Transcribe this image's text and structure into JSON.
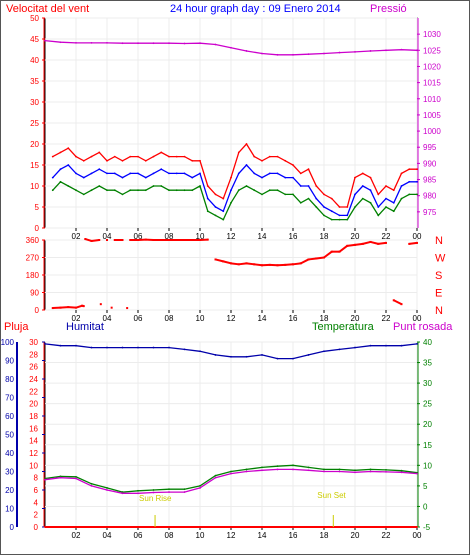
{
  "header": {
    "left_title": "Velocitat del vent",
    "center_title": "24 hour graph day : 09 Enero 2014",
    "right_title": "Pressió"
  },
  "colors": {
    "red": "#ff0000",
    "blue": "#0000ff",
    "green": "#008000",
    "magenta": "#cc00cc",
    "darkblue": "#0000aa",
    "yellow": "#cccc00",
    "axis_red": "#ff0000"
  },
  "chart_data": [
    {
      "type": "line",
      "title": "",
      "x_ticks": [
        "02",
        "04",
        "06",
        "08",
        "10",
        "12",
        "14",
        "16",
        "18",
        "20",
        "22",
        "00"
      ],
      "left_axis": {
        "label": "Velocitat del vent",
        "range": [
          0,
          50
        ],
        "ticks": [
          "0",
          "5",
          "10",
          "15",
          "20",
          "25",
          "30",
          "35",
          "40",
          "45",
          "50"
        ]
      },
      "right_axis": {
        "label": "Pressió",
        "range": [
          970,
          1035
        ],
        "ticks": [
          "975",
          "980",
          "985",
          "990",
          "995",
          "1000",
          "1005",
          "1010",
          "1015",
          "1020",
          "1025",
          "1030"
        ]
      },
      "series": [
        {
          "name": "",
          "color": "#ff0000",
          "x": [
            0.5,
            1,
            1.5,
            2,
            2.5,
            3,
            3.5,
            4,
            4.5,
            5,
            5.5,
            6,
            6.5,
            7,
            7.5,
            8,
            8.5,
            9,
            9.5,
            10,
            10.5,
            11,
            11.5,
            12,
            12.5,
            13,
            13.5,
            14,
            14.5,
            15,
            15.5,
            16,
            16.5,
            17,
            17.5,
            18,
            18.5,
            19,
            19.5,
            20,
            20.5,
            21,
            21.5,
            22,
            22.5,
            23,
            23.5,
            24
          ],
          "values": [
            17,
            18,
            19,
            17,
            16,
            17,
            18,
            16,
            17,
            16,
            17,
            17,
            16,
            17,
            18,
            17,
            17,
            17,
            16,
            16,
            10,
            8,
            7,
            12,
            18,
            20,
            17,
            16,
            17,
            17,
            16,
            15,
            13,
            14,
            10,
            8,
            7,
            5,
            5,
            12,
            13,
            12,
            8,
            10,
            9,
            13,
            14,
            14
          ]
        },
        {
          "name": "",
          "color": "#0000ff",
          "x": [
            0.5,
            1,
            1.5,
            2,
            2.5,
            3,
            3.5,
            4,
            4.5,
            5,
            5.5,
            6,
            6.5,
            7,
            7.5,
            8,
            8.5,
            9,
            9.5,
            10,
            10.5,
            11,
            11.5,
            12,
            12.5,
            13,
            13.5,
            14,
            14.5,
            15,
            15.5,
            16,
            16.5,
            17,
            17.5,
            18,
            18.5,
            19,
            19.5,
            20,
            20.5,
            21,
            21.5,
            22,
            22.5,
            23,
            23.5,
            24
          ],
          "values": [
            12,
            14,
            15,
            13,
            12,
            13,
            14,
            13,
            13,
            12,
            13,
            13,
            12,
            13,
            14,
            13,
            13,
            13,
            12,
            13,
            7,
            5,
            4,
            9,
            13,
            15,
            13,
            12,
            13,
            13,
            12,
            12,
            10,
            10,
            7,
            5,
            4,
            3,
            3,
            8,
            10,
            9,
            5,
            7,
            6,
            10,
            11,
            11
          ]
        },
        {
          "name": "",
          "color": "#008000",
          "x": [
            0.5,
            1,
            1.5,
            2,
            2.5,
            3,
            3.5,
            4,
            4.5,
            5,
            5.5,
            6,
            6.5,
            7,
            7.5,
            8,
            8.5,
            9,
            9.5,
            10,
            10.5,
            11,
            11.5,
            12,
            12.5,
            13,
            13.5,
            14,
            14.5,
            15,
            15.5,
            16,
            16.5,
            17,
            17.5,
            18,
            18.5,
            19,
            19.5,
            20,
            20.5,
            21,
            21.5,
            22,
            22.5,
            23,
            23.5,
            24
          ],
          "values": [
            9,
            11,
            10,
            9,
            8,
            9,
            10,
            9,
            9,
            8,
            9,
            9,
            9,
            10,
            10,
            9,
            9,
            9,
            9,
            10,
            4,
            3,
            2,
            6,
            9,
            10,
            9,
            8,
            9,
            9,
            8,
            8,
            6,
            7,
            5,
            3,
            2,
            2,
            2,
            5,
            7,
            6,
            3,
            5,
            4,
            7,
            8,
            8
          ]
        },
        {
          "name": "",
          "color": "#cc00cc",
          "axis": "right",
          "x": [
            0,
            1,
            2,
            3,
            4,
            5,
            6,
            7,
            8,
            9,
            10,
            11,
            12,
            13,
            14,
            15,
            16,
            17,
            18,
            19,
            20,
            21,
            22,
            23,
            24
          ],
          "values": [
            1028,
            1027.5,
            1027.3,
            1027.3,
            1027.3,
            1027.2,
            1027.2,
            1027.2,
            1027.2,
            1027.1,
            1027.2,
            1026.8,
            1025.8,
            1024.8,
            1024,
            1023.6,
            1023.6,
            1023.8,
            1024,
            1024.3,
            1024.5,
            1024.8,
            1025,
            1025.2,
            1025
          ]
        }
      ]
    },
    {
      "type": "scatter",
      "title": "",
      "x_ticks": [
        "02",
        "04",
        "06",
        "08",
        "10",
        "12",
        "14",
        "16",
        "18",
        "20",
        "22",
        "00"
      ],
      "left_axis": {
        "range": [
          0,
          360
        ],
        "ticks": [
          "0",
          "90",
          "180",
          "270",
          "360"
        ]
      },
      "right_axis": {
        "ticks": [
          "N",
          "W",
          "S",
          "E",
          "N"
        ]
      },
      "series": [
        {
          "name": "",
          "color": "#ff0000",
          "points": [
            [
              0.5,
              10
            ],
            [
              1,
              12
            ],
            [
              1.5,
              15
            ],
            [
              2,
              12
            ],
            [
              2.5,
              20
            ],
            [
              2.6,
              365
            ],
            [
              3,
              355
            ],
            [
              3.5,
              360
            ],
            [
              4,
              360
            ],
            [
              4.5,
              360
            ],
            [
              5,
              360
            ],
            [
              5.5,
              360
            ],
            [
              6,
              360
            ],
            [
              6.5,
              362
            ],
            [
              7,
              360
            ],
            [
              7.5,
              360
            ],
            [
              8,
              360
            ],
            [
              8.5,
              360
            ],
            [
              9,
              360
            ],
            [
              9.5,
              360
            ],
            [
              10,
              360
            ],
            [
              10.5,
              362
            ],
            [
              11,
              260
            ],
            [
              11.5,
              250
            ],
            [
              12,
              240
            ],
            [
              12.5,
              235
            ],
            [
              13,
              240
            ],
            [
              13.5,
              235
            ],
            [
              14,
              230
            ],
            [
              14.5,
              232
            ],
            [
              15,
              230
            ],
            [
              15.5,
              232
            ],
            [
              16,
              235
            ],
            [
              16.5,
              240
            ],
            [
              17,
              260
            ],
            [
              17.5,
              265
            ],
            [
              18,
              270
            ],
            [
              18.5,
              300
            ],
            [
              19,
              300
            ],
            [
              19.5,
              330
            ],
            [
              20,
              335
            ],
            [
              20.5,
              340
            ],
            [
              21,
              350
            ],
            [
              21.5,
              340
            ],
            [
              22,
              345
            ],
            [
              22.5,
              50
            ],
            [
              23,
              30
            ],
            [
              23.5,
              340
            ],
            [
              24,
              345
            ],
            [
              3.6,
              30
            ],
            [
              4.3,
              12
            ],
            [
              2.4,
              22
            ],
            [
              5.3,
              10
            ]
          ]
        }
      ]
    },
    {
      "type": "line",
      "title": "",
      "x_ticks": [
        "02",
        "04",
        "06",
        "08",
        "10",
        "12",
        "14",
        "16",
        "18",
        "20",
        "22",
        "00"
      ],
      "labels": {
        "rain": "Pluja",
        "humidity": "Humitat",
        "temperature": "Temperatura",
        "dewpoint": "Punt rosada"
      },
      "sun_labels": {
        "rise": "Sun Rise",
        "set": "Sun Set"
      },
      "rain_axis": {
        "range": [
          0,
          30
        ],
        "ticks": [
          "0",
          "2",
          "4",
          "6",
          "8",
          "10",
          "12",
          "14",
          "16",
          "18",
          "20",
          "22",
          "24",
          "26",
          "28",
          "30"
        ]
      },
      "humidity_axis": {
        "range": [
          0,
          100
        ],
        "ticks": [
          "0",
          "10",
          "20",
          "30",
          "40",
          "50",
          "60",
          "70",
          "80",
          "90",
          "100"
        ]
      },
      "temp_axis": {
        "range": [
          -5,
          40
        ],
        "ticks": [
          "-5",
          "0",
          "5",
          "10",
          "15",
          "20",
          "25",
          "30",
          "35",
          "40"
        ]
      },
      "series": [
        {
          "name": "Humitat",
          "color": "#0000aa",
          "axis": "humidity",
          "x": [
            0,
            1,
            2,
            3,
            4,
            5,
            6,
            7,
            8,
            9,
            10,
            11,
            12,
            13,
            14,
            15,
            16,
            17,
            18,
            19,
            20,
            21,
            22,
            23,
            24
          ],
          "values": [
            99,
            98,
            98,
            97,
            97,
            97,
            97,
            97,
            97,
            96,
            95,
            93,
            92,
            92,
            93,
            91,
            91,
            93,
            95,
            96,
            97,
            98,
            98,
            98,
            99
          ]
        },
        {
          "name": "Temperatura",
          "color": "#008000",
          "axis": "temp",
          "x": [
            0,
            1,
            2,
            3,
            4,
            5,
            6,
            7,
            8,
            9,
            10,
            11,
            12,
            13,
            14,
            15,
            16,
            17,
            18,
            19,
            20,
            21,
            22,
            23,
            24
          ],
          "values": [
            6.8,
            7.3,
            7.2,
            5.5,
            4.5,
            3.5,
            3.8,
            4,
            4.2,
            4.2,
            5,
            7.5,
            8.5,
            9,
            9.5,
            9.8,
            10,
            9.5,
            9,
            9,
            8.8,
            9,
            8.9,
            8.7,
            8.2
          ]
        },
        {
          "name": "Punt rosada",
          "color": "#cc00cc",
          "axis": "temp",
          "x": [
            0,
            1,
            2,
            3,
            4,
            5,
            6,
            7,
            8,
            9,
            10,
            11,
            12,
            13,
            14,
            15,
            16,
            17,
            18,
            19,
            20,
            21,
            22,
            23,
            24
          ],
          "values": [
            6.5,
            7,
            6.8,
            5,
            4,
            3.2,
            3.2,
            3.4,
            3.5,
            3.5,
            4.5,
            7,
            8,
            8.5,
            8.8,
            9,
            9,
            8.8,
            8.5,
            8.5,
            8.3,
            8.5,
            8.4,
            8.3,
            8
          ]
        },
        {
          "name": "Pluja",
          "color": "#ff0000",
          "axis": "rain",
          "x": [
            0,
            24
          ],
          "values": [
            0,
            0
          ]
        }
      ],
      "events": {
        "sunrise_hour": 7.1,
        "sunset_hour": 18.6
      }
    }
  ]
}
